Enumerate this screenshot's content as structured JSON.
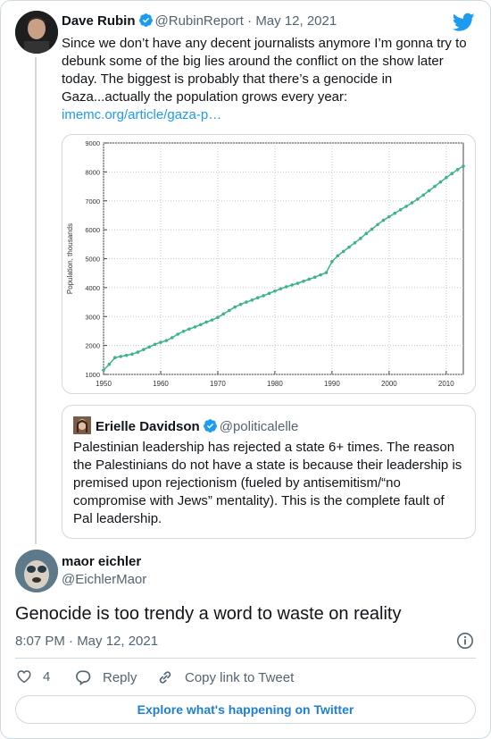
{
  "tweet": {
    "author_name": "Dave Rubin",
    "author_handle": "@RubinReport",
    "separator": " · ",
    "date": "May 12, 2021",
    "text": "Since we don’t have any decent journalists anymore I’m gonna try to debunk some of the big lies around the conflict on the show later today. The biggest is probably that there’s a genocide in Gaza...actually the population grows every year:",
    "link": "imemc.org/article/gaza-p…"
  },
  "chart_data": {
    "type": "line",
    "ylabel": "Population, thousands",
    "xlabel": "",
    "xlim": [
      1950,
      2013
    ],
    "ylim": [
      1000,
      9000
    ],
    "xticks": [
      "1950",
      "1960",
      "1970",
      "1980",
      "1990",
      "2000",
      "2010"
    ],
    "yticks": [
      "1000",
      "2000",
      "3000",
      "4000",
      "5000",
      "6000",
      "7000",
      "8000",
      "9000"
    ],
    "grid": true,
    "series": [
      {
        "color": "#3cb38a",
        "x": [
          1950,
          1951,
          1952,
          1953,
          1954,
          1955,
          1956,
          1957,
          1958,
          1959,
          1960,
          1961,
          1962,
          1963,
          1964,
          1965,
          1966,
          1967,
          1968,
          1969,
          1970,
          1971,
          1972,
          1973,
          1974,
          1975,
          1976,
          1977,
          1978,
          1979,
          1980,
          1981,
          1982,
          1983,
          1984,
          1985,
          1986,
          1987,
          1988,
          1989,
          1990,
          1991,
          1992,
          1993,
          1994,
          1995,
          1996,
          1997,
          1998,
          1999,
          2000,
          2001,
          2002,
          2003,
          2004,
          2005,
          2006,
          2007,
          2008,
          2009,
          2010,
          2011,
          2012,
          2013
        ],
        "y": [
          1150,
          1350,
          1580,
          1620,
          1660,
          1700,
          1770,
          1860,
          1950,
          2040,
          2110,
          2170,
          2270,
          2390,
          2490,
          2570,
          2640,
          2720,
          2810,
          2880,
          2970,
          3090,
          3210,
          3330,
          3420,
          3500,
          3570,
          3650,
          3720,
          3800,
          3880,
          3960,
          4030,
          4090,
          4150,
          4220,
          4290,
          4360,
          4440,
          4520,
          4900,
          5100,
          5250,
          5400,
          5550,
          5700,
          5870,
          6020,
          6180,
          6330,
          6450,
          6570,
          6690,
          6810,
          6930,
          7060,
          7200,
          7350,
          7500,
          7650,
          7800,
          7940,
          8080,
          8200
        ]
      }
    ]
  },
  "quote": {
    "author_name": "Erielle Davidson",
    "author_handle": "@politicalelle",
    "text": "Palestinian leadership has rejected a state 6+ times. The reason the Palestinians do not have a state is because their leadership is premised upon rejectionism (fueled by antisemitism/“no compromise with Jews” mentality). This is the complete fault of Pal leadership."
  },
  "reply": {
    "author_name": "maor eichler",
    "author_handle": "@EichlerMaor",
    "text": "Genocide is too trendy a word to waste on reality",
    "timestamp": "8:07 PM · May 12, 2021"
  },
  "actions": {
    "like_count": "4",
    "reply_label": "Reply",
    "copy_label": "Copy link to Tweet"
  },
  "explore_label": "Explore what's happening on Twitter",
  "colors": {
    "verified": "#1d9bf0",
    "twitter_blue": "#1d9bf0",
    "link": "#1d9bf0",
    "series": "#3cb38a"
  },
  "icons": [
    "verified-badge-icon",
    "twitter-bird-icon",
    "info-icon",
    "heart-icon",
    "reply-icon",
    "link-icon"
  ]
}
